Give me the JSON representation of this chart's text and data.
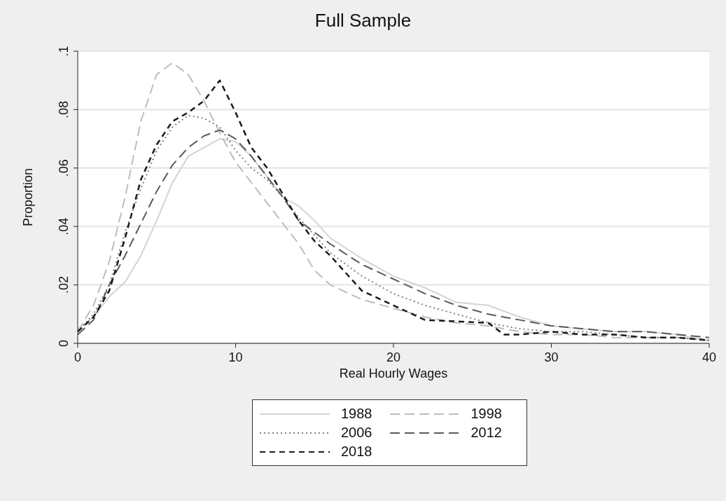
{
  "chart_data": {
    "type": "line",
    "title": "Full Sample",
    "xlabel": "Real Hourly Wages",
    "ylabel": "Proportion",
    "xlim": [
      0,
      40
    ],
    "xticks": [
      0,
      10,
      20,
      30,
      40
    ],
    "ylim": [
      0,
      0.1
    ],
    "yticks": [
      0,
      {
        "value": 0.02,
        "label": ".02"
      },
      {
        "value": 0.04,
        "label": ".04"
      },
      {
        "value": 0.06,
        "label": ".06"
      },
      {
        "value": 0.08,
        "label": ".08"
      },
      {
        "value": 0.1,
        "label": ".1"
      }
    ],
    "grid": "y",
    "legend": "bottom",
    "marker": "none",
    "series": [
      {
        "name": "1988",
        "color": "#d4d4d4",
        "line_style": "solid",
        "x": [
          0,
          1,
          2,
          3,
          4,
          5,
          6,
          7,
          8,
          9,
          10,
          11,
          12,
          13,
          14,
          15,
          16,
          18,
          20,
          22,
          24,
          26,
          28,
          30,
          32,
          34,
          36,
          38,
          40
        ],
        "values": [
          0.005,
          0.009,
          0.016,
          0.021,
          0.03,
          0.042,
          0.055,
          0.064,
          0.067,
          0.07,
          0.069,
          0.064,
          0.057,
          0.05,
          0.047,
          0.042,
          0.036,
          0.029,
          0.023,
          0.019,
          0.014,
          0.013,
          0.009,
          0.006,
          0.005,
          0.004,
          0.004,
          0.003,
          0.001
        ]
      },
      {
        "name": "1998",
        "color": "#bdbdbd",
        "line_style": "dashed",
        "x": [
          0,
          1,
          2,
          3,
          4,
          5,
          6,
          7,
          8,
          9,
          10,
          11,
          12,
          13,
          14,
          15,
          16,
          18,
          20,
          22,
          24,
          26,
          28,
          30,
          32,
          34,
          36,
          38,
          40
        ],
        "values": [
          0.004,
          0.013,
          0.028,
          0.05,
          0.076,
          0.092,
          0.096,
          0.092,
          0.083,
          0.072,
          0.062,
          0.055,
          0.048,
          0.041,
          0.034,
          0.025,
          0.02,
          0.015,
          0.012,
          0.009,
          0.007,
          0.006,
          0.004,
          0.003,
          0.003,
          0.002,
          0.002,
          0.002,
          0.001
        ]
      },
      {
        "name": "2006",
        "color": "#808080",
        "line_style": "dotted",
        "x": [
          0,
          1,
          2,
          3,
          4,
          5,
          6,
          7,
          8,
          9,
          10,
          11,
          12,
          13,
          14,
          15,
          16,
          18,
          20,
          22,
          24,
          26,
          28,
          30,
          32,
          34,
          36,
          38,
          40
        ],
        "values": [
          0.004,
          0.01,
          0.02,
          0.038,
          0.053,
          0.066,
          0.074,
          0.078,
          0.077,
          0.074,
          0.066,
          0.06,
          0.056,
          0.05,
          0.043,
          0.037,
          0.031,
          0.023,
          0.017,
          0.013,
          0.01,
          0.007,
          0.005,
          0.004,
          0.004,
          0.003,
          0.002,
          0.002,
          0.001
        ]
      },
      {
        "name": "2012",
        "color": "#5a5a5a",
        "line_style": "dashed",
        "x": [
          0,
          1,
          2,
          3,
          4,
          5,
          6,
          7,
          8,
          9,
          10,
          11,
          12,
          13,
          14,
          15,
          16,
          18,
          20,
          22,
          24,
          26,
          28,
          30,
          32,
          34,
          36,
          38,
          40
        ],
        "values": [
          0.003,
          0.008,
          0.02,
          0.03,
          0.041,
          0.052,
          0.061,
          0.067,
          0.071,
          0.073,
          0.07,
          0.064,
          0.057,
          0.05,
          0.042,
          0.038,
          0.034,
          0.027,
          0.022,
          0.017,
          0.013,
          0.01,
          0.008,
          0.006,
          0.005,
          0.004,
          0.004,
          0.003,
          0.002
        ]
      },
      {
        "name": "2018",
        "color": "#1a1a1a",
        "line_style": "dashed",
        "x": [
          0,
          1,
          2,
          3,
          4,
          5,
          6,
          7,
          8,
          9,
          10,
          11,
          12,
          13,
          14,
          15,
          16,
          18,
          20,
          22,
          24,
          26,
          27,
          28,
          30,
          32,
          34,
          36,
          38,
          40
        ],
        "values": [
          0.004,
          0.009,
          0.018,
          0.036,
          0.056,
          0.068,
          0.076,
          0.079,
          0.083,
          0.09,
          0.079,
          0.067,
          0.06,
          0.051,
          0.042,
          0.035,
          0.03,
          0.018,
          0.013,
          0.008,
          0.0075,
          0.007,
          0.003,
          0.003,
          0.004,
          0.003,
          0.003,
          0.002,
          0.002,
          0.001
        ]
      }
    ]
  }
}
